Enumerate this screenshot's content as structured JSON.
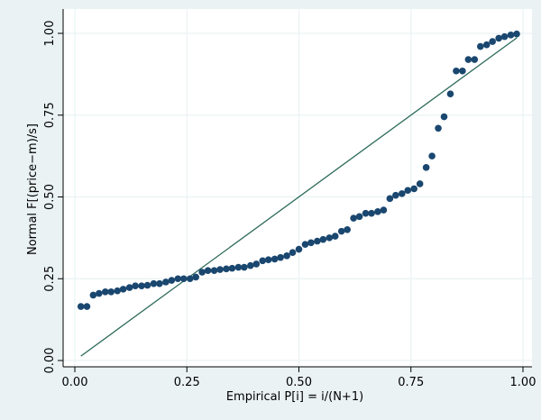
{
  "chart_data": {
    "type": "scatter",
    "xlabel": "Empirical P[i] = i/(N+1)",
    "ylabel": "Normal F[(price−m)/s]",
    "xlim": [
      0,
      1
    ],
    "ylim": [
      0,
      1
    ],
    "xticks": [
      "0.00",
      "0.25",
      "0.50",
      "0.75",
      "1.00"
    ],
    "yticks": [
      "0.00",
      "0.25",
      "0.50",
      "0.75",
      "1.00"
    ],
    "grid": true,
    "reference_line": {
      "x": [
        0.0135,
        0.9865
      ],
      "y": [
        0.0135,
        0.9865
      ]
    },
    "colors": {
      "points": "#1a476f",
      "line": "#2d6a5a",
      "background": "#eaf2f3",
      "plot": "#ffffff",
      "grid": "#eaf2f3"
    },
    "points": [
      [
        0.0135,
        0.165
      ],
      [
        0.027,
        0.165
      ],
      [
        0.041,
        0.2
      ],
      [
        0.054,
        0.205
      ],
      [
        0.068,
        0.21
      ],
      [
        0.081,
        0.21
      ],
      [
        0.095,
        0.213
      ],
      [
        0.108,
        0.218
      ],
      [
        0.122,
        0.223
      ],
      [
        0.135,
        0.228
      ],
      [
        0.149,
        0.228
      ],
      [
        0.162,
        0.23
      ],
      [
        0.176,
        0.235
      ],
      [
        0.189,
        0.235
      ],
      [
        0.203,
        0.24
      ],
      [
        0.216,
        0.245
      ],
      [
        0.23,
        0.25
      ],
      [
        0.243,
        0.25
      ],
      [
        0.257,
        0.25
      ],
      [
        0.27,
        0.255
      ],
      [
        0.284,
        0.27
      ],
      [
        0.297,
        0.275
      ],
      [
        0.311,
        0.275
      ],
      [
        0.324,
        0.278
      ],
      [
        0.338,
        0.28
      ],
      [
        0.351,
        0.282
      ],
      [
        0.365,
        0.285
      ],
      [
        0.378,
        0.285
      ],
      [
        0.392,
        0.29
      ],
      [
        0.405,
        0.295
      ],
      [
        0.419,
        0.305
      ],
      [
        0.432,
        0.308
      ],
      [
        0.446,
        0.31
      ],
      [
        0.459,
        0.315
      ],
      [
        0.473,
        0.32
      ],
      [
        0.486,
        0.33
      ],
      [
        0.5,
        0.34
      ],
      [
        0.514,
        0.355
      ],
      [
        0.527,
        0.36
      ],
      [
        0.541,
        0.365
      ],
      [
        0.554,
        0.37
      ],
      [
        0.568,
        0.375
      ],
      [
        0.581,
        0.38
      ],
      [
        0.595,
        0.395
      ],
      [
        0.608,
        0.4
      ],
      [
        0.622,
        0.435
      ],
      [
        0.635,
        0.44
      ],
      [
        0.649,
        0.45
      ],
      [
        0.662,
        0.45
      ],
      [
        0.676,
        0.455
      ],
      [
        0.689,
        0.46
      ],
      [
        0.703,
        0.495
      ],
      [
        0.716,
        0.505
      ],
      [
        0.73,
        0.51
      ],
      [
        0.743,
        0.52
      ],
      [
        0.757,
        0.525
      ],
      [
        0.77,
        0.54
      ],
      [
        0.784,
        0.59
      ],
      [
        0.797,
        0.625
      ],
      [
        0.811,
        0.71
      ],
      [
        0.824,
        0.745
      ],
      [
        0.838,
        0.815
      ],
      [
        0.851,
        0.885
      ],
      [
        0.865,
        0.885
      ],
      [
        0.878,
        0.92
      ],
      [
        0.892,
        0.92
      ],
      [
        0.905,
        0.96
      ],
      [
        0.919,
        0.965
      ],
      [
        0.932,
        0.975
      ],
      [
        0.946,
        0.985
      ],
      [
        0.959,
        0.99
      ],
      [
        0.973,
        0.995
      ],
      [
        0.986,
        0.998
      ]
    ]
  }
}
